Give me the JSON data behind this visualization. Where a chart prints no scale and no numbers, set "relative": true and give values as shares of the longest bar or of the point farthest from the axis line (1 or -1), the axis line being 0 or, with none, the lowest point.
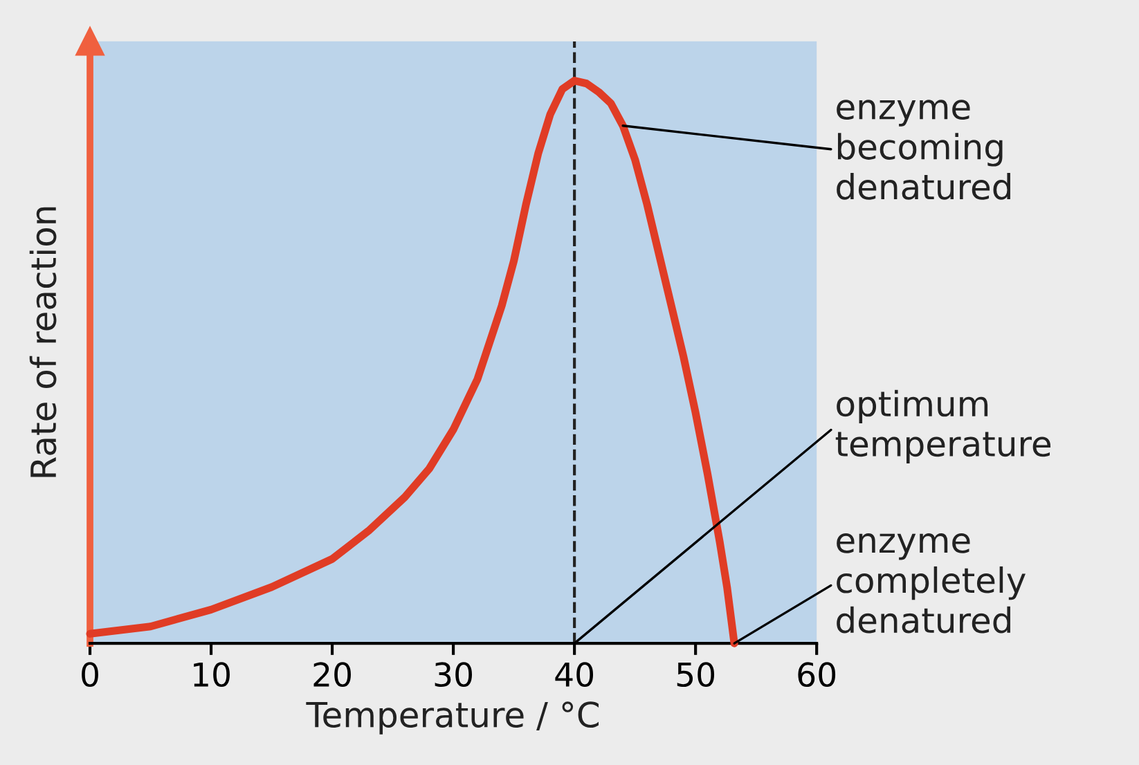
{
  "chart_data": {
    "type": "line",
    "relative": true,
    "xlabel": "Temperature / °C",
    "ylabel": "Rate of reaction",
    "xlim": [
      0,
      60
    ],
    "xticks": [
      0,
      10,
      20,
      30,
      40,
      50,
      60
    ],
    "grid": false,
    "legend": false,
    "marker": "none",
    "line_style": "solid",
    "series": [
      {
        "color": "#e03c25",
        "x": [
          0,
          5,
          10,
          15,
          20,
          23,
          26,
          28,
          30,
          32,
          34,
          35,
          36,
          37,
          38,
          39,
          40,
          41,
          42,
          43,
          44,
          45,
          46,
          47,
          48,
          49,
          50,
          51,
          52,
          52.6,
          53.2
        ],
        "values": [
          0.017,
          0.03,
          0.06,
          0.1,
          0.15,
          0.2,
          0.26,
          0.31,
          0.38,
          0.47,
          0.6,
          0.68,
          0.78,
          0.87,
          0.94,
          0.985,
          1,
          0.995,
          0.98,
          0.96,
          0.92,
          0.86,
          0.78,
          0.69,
          0.6,
          0.51,
          0.41,
          0.3,
          0.18,
          0.1,
          0
        ]
      }
    ],
    "ref_lines": [
      {
        "axis": "x",
        "value": 40,
        "color": "#222222",
        "line_style": "dashed"
      }
    ],
    "annotations": [
      {
        "text": "enzyme\nbecoming\ndenatured",
        "x": 44,
        "y": 0.92
      },
      {
        "text": "optimum\ntemperature",
        "x": 40,
        "y": 0
      },
      {
        "text": "enzyme\ncompletely\ndenatured",
        "x": 53.2,
        "y": 0
      }
    ]
  }
}
